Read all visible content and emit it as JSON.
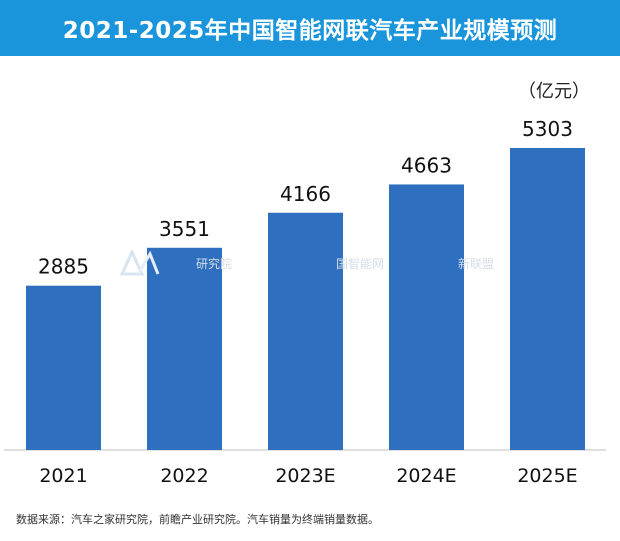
{
  "header": {
    "title": "2021-2025年中国智能网联汽车产业规模预测"
  },
  "unit_label": "（亿元）",
  "watermark": {
    "text_left": "研究院",
    "text_right": "国智能网",
    "text_far": "新联盟"
  },
  "source": "数据来源：汽车之家研究院，前瞻产业研究院。汽车销量为终端销量数据。",
  "colors": {
    "header": "#1a95dc",
    "bar": "#2e6fbf",
    "axis": "#bfbfbf"
  },
  "chart_data": {
    "type": "bar",
    "title": "2021-2025年中国智能网联汽车产业规模预测",
    "categories": [
      "2021",
      "2022",
      "2023E",
      "2024E",
      "2025E"
    ],
    "values": [
      2885,
      3551,
      4166,
      4663,
      5303
    ],
    "ylabel": "（亿元）",
    "xlabel": "",
    "ylim": [
      0,
      5303
    ],
    "grid": false,
    "legend": "none"
  }
}
